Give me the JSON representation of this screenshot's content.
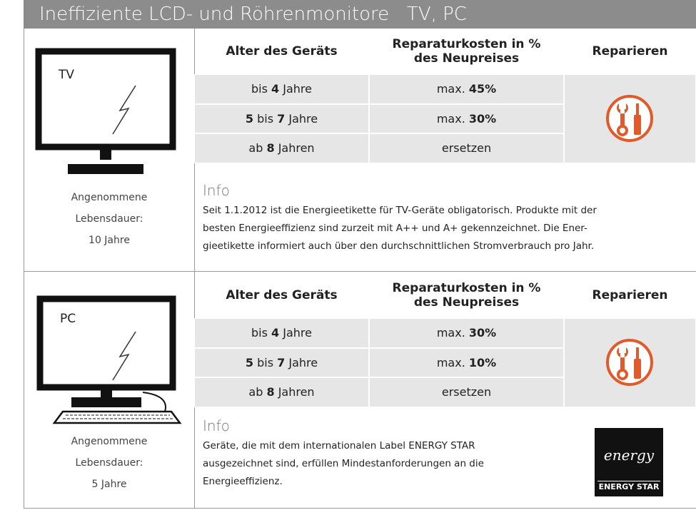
{
  "title": "Ineffiziente LCD- und Röhrenmonitore   TV, PC",
  "sections": [
    {
      "device": "TV",
      "lifespan": [
        "Angenommene",
        "Lebensdauer:",
        "10 Jahre"
      ],
      "table": {
        "header": [
          "Alter des Geräts",
          "Reparaturkosten in % des Neupreises",
          "Reparieren"
        ],
        "rows": [
          [
            [
              "bis ",
              {
                "text": "4",
                "bold": true
              },
              " Jahre"
            ],
            [
              "max. ",
              {
                "text": "45%",
                "bold": true
              }
            ]
          ],
          [
            [
              {
                "text": "5",
                "bold": true
              },
              " bis ",
              {
                "text": "7",
                "bold": true
              },
              " Jahre"
            ],
            [
              "max. ",
              {
                "text": "30%",
                "bold": true
              }
            ]
          ],
          [
            [
              "ab ",
              {
                "text": "8",
                "bold": true
              },
              " Jahren"
            ],
            [
              "ersetzen"
            ]
          ]
        ]
      },
      "info": {
        "heading": "Info",
        "lines": [
          "Seit 1.1.2012 ist die Energieetikette für TV-Geräte obligatorisch. Produkte mit der",
          "besten Energieeffizienz sind zurzeit mit A++ und A+ gekennzeichnet. Die Ener-",
          "gieetikette informiert auch über den durchschnittlichen Stromverbrauch pro Jahr."
        ]
      }
    },
    {
      "device": "PC",
      "lifespan": [
        "Angenommene",
        "Lebensdauer:",
        "5 Jahre"
      ],
      "table": {
        "header": [
          "Alter des Geräts",
          "Reparaturkosten in % des Neupreises",
          "Reparieren"
        ],
        "rows": [
          [
            [
              "bis ",
              {
                "text": "4",
                "bold": true
              },
              " Jahre"
            ],
            [
              "max. ",
              {
                "text": "30%",
                "bold": true
              }
            ]
          ],
          [
            [
              {
                "text": "5",
                "bold": true
              },
              " bis ",
              {
                "text": "7",
                "bold": true
              },
              " Jahre"
            ],
            [
              "max. ",
              {
                "text": "10%",
                "bold": true
              }
            ]
          ],
          [
            [
              "ab ",
              {
                "text": "8",
                "bold": true
              },
              " Jahren"
            ],
            [
              "ersetzen"
            ]
          ]
        ]
      },
      "info": {
        "heading": "Info",
        "lines": [
          "Geräte, die mit dem internationalen Label ENERGY STAR",
          "ausgezeichnet sind, erfüllen Mindestanforderungen an die",
          "Energieeffizienz."
        ]
      },
      "logo": {
        "script": "energy",
        "label": "ENERGY STAR"
      }
    }
  ]
}
